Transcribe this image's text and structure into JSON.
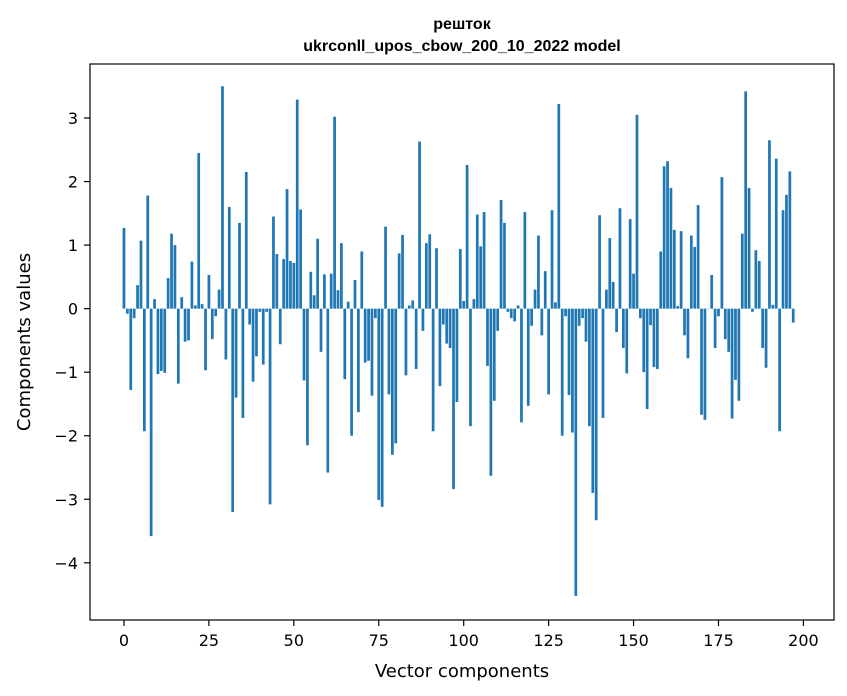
{
  "chart_data": {
    "type": "bar",
    "title_line1": "решток",
    "title_line2": "ukrconll_upos_cbow_200_10_2022 model",
    "xlabel": "Vector components",
    "ylabel": "Components values",
    "xlim": [
      -10,
      209
    ],
    "ylim": [
      -4.9,
      3.85
    ],
    "x_ticks": [
      0,
      25,
      50,
      75,
      100,
      125,
      150,
      175,
      200
    ],
    "y_ticks": [
      -4,
      -3,
      -2,
      -1,
      0,
      1,
      2,
      3
    ],
    "y_tick_labels": [
      "−4",
      "−3",
      "−2",
      "−1",
      "0",
      "1",
      "2",
      "3"
    ],
    "bar_color": "#1f77b4",
    "values": [
      1.27,
      -0.08,
      -1.28,
      -0.15,
      0.37,
      1.07,
      -1.93,
      1.78,
      -3.58,
      0.15,
      -1.03,
      -0.98,
      -1.01,
      0.48,
      1.18,
      1.0,
      -1.18,
      0.18,
      -0.52,
      -0.5,
      0.74,
      0.05,
      2.45,
      0.07,
      -0.97,
      0.53,
      -0.48,
      -0.12,
      0.3,
      3.5,
      -0.8,
      1.6,
      -3.2,
      -1.4,
      1.35,
      -1.72,
      2.15,
      -0.25,
      -1.15,
      -0.75,
      -0.05,
      -0.88,
      -0.05,
      -3.08,
      1.45,
      0.86,
      -0.56,
      0.78,
      1.88,
      0.75,
      0.72,
      3.29,
      1.56,
      -1.13,
      -2.15,
      0.58,
      0.21,
      1.1,
      -0.68,
      0.54,
      -2.58,
      0.55,
      3.02,
      0.29,
      1.03,
      -1.11,
      0.11,
      -2.0,
      0.45,
      -1.63,
      0.9,
      -0.85,
      -0.82,
      -1.37,
      -0.15,
      -3.01,
      -3.12,
      1.29,
      -1.35,
      -2.3,
      -2.12,
      0.87,
      1.16,
      -1.05,
      0.05,
      0.13,
      -0.95,
      2.63,
      -0.35,
      1.03,
      1.17,
      -1.93,
      0.95,
      -1.22,
      -0.25,
      -0.55,
      -0.62,
      -2.84,
      -1.47,
      0.94,
      0.12,
      2.26,
      -1.85,
      0.15,
      1.48,
      0.98,
      1.52,
      -0.9,
      -2.63,
      -1.45,
      -0.35,
      1.71,
      1.35,
      -0.05,
      -0.15,
      -0.2,
      0.05,
      -1.79,
      1.52,
      -1.53,
      -0.27,
      0.3,
      1.15,
      -0.42,
      0.59,
      -1.35,
      1.55,
      0.1,
      3.22,
      -2.0,
      -0.12,
      -1.36,
      -1.95,
      -4.52,
      -0.27,
      -0.15,
      -0.52,
      -1.85,
      -2.9,
      -3.33,
      1.47,
      -1.72,
      0.3,
      1.11,
      0.42,
      -0.37,
      1.58,
      -0.62,
      -1.02,
      1.41,
      0.55,
      3.05,
      -0.15,
      -1.0,
      -1.58,
      -0.26,
      -0.92,
      -0.95,
      0.9,
      2.24,
      2.32,
      1.9,
      1.24,
      0.04,
      1.22,
      -0.42,
      -0.78,
      1.15,
      0.97,
      1.63,
      -1.67,
      -1.75,
      0.0,
      0.53,
      -0.62,
      -0.12,
      2.07,
      -0.48,
      -0.68,
      -1.73,
      -1.12,
      -1.45,
      1.18,
      3.42,
      1.9,
      -0.05,
      0.92,
      0.75,
      -0.62,
      -0.93,
      2.65,
      0.06,
      2.36,
      -1.93,
      1.55,
      1.79,
      2.16,
      -0.22
    ]
  }
}
